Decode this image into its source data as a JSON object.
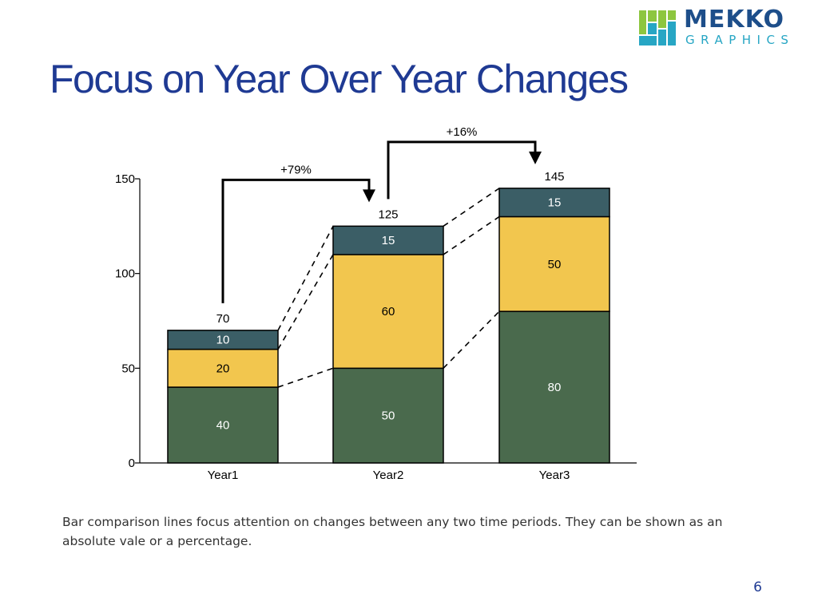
{
  "slide": {
    "title": "Focus on Year Over Year Changes",
    "caption": "Bar comparison lines focus attention on changes between any two time periods. They can be shown as an absolute vale or a percentage.",
    "page_number": "6"
  },
  "logo": {
    "word": "MEKKO",
    "sub": "GRAPHICS",
    "colors": [
      "#8dc63f",
      "#27a6c4",
      "#1d4e8a"
    ]
  },
  "chart_data": {
    "type": "bar",
    "stacked": true,
    "categories": [
      "Year1",
      "Year2",
      "Year3"
    ],
    "series": [
      {
        "values": [
          40,
          50,
          80
        ],
        "color": "#4a6a4d"
      },
      {
        "values": [
          20,
          60,
          50
        ],
        "color": "#f2c64e"
      },
      {
        "values": [
          10,
          15,
          15
        ],
        "color": "#3b5e66"
      }
    ],
    "totals": [
      "70",
      "125",
      "145"
    ],
    "ylim": [
      0,
      150
    ],
    "yticks": [
      0,
      50,
      100,
      150
    ],
    "grid": false,
    "legend": "none",
    "comparisons": [
      {
        "from": 0,
        "to": 1,
        "label": "+79%"
      },
      {
        "from": 1,
        "to": 2,
        "label": "+16%"
      }
    ],
    "colors": {
      "axis": "#000000",
      "outline": "#000000",
      "label_dark": "#ffffff",
      "label_light": "#000000"
    }
  }
}
